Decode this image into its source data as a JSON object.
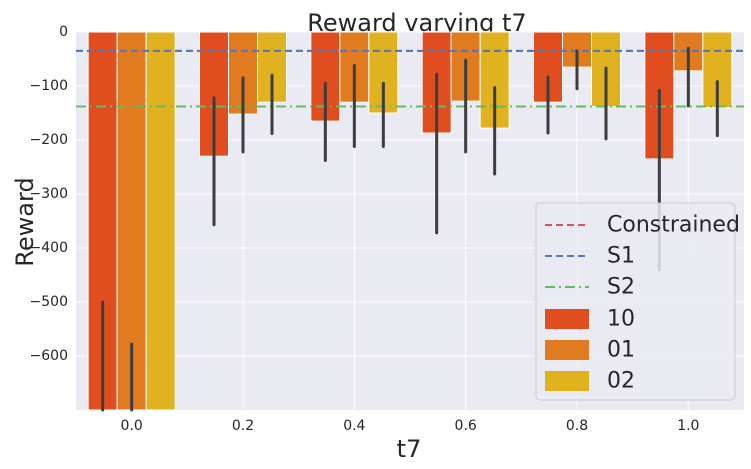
{
  "chart_data": {
    "type": "bar",
    "title": "Reward varying t7",
    "xlabel": "t7",
    "ylabel": "Reward",
    "categories": [
      "0.0",
      "0.2",
      "0.4",
      "0.6",
      "0.8",
      "1.0"
    ],
    "ylim": [
      -700,
      0
    ],
    "yticks": [
      0,
      -100,
      -200,
      -300,
      -400,
      -500,
      -600
    ],
    "ytick_labels": [
      "0",
      "−100",
      "−200",
      "−300",
      "−400",
      "−500",
      "−600"
    ],
    "grid": true,
    "legend_position": "lower-right",
    "series": [
      {
        "name": "10",
        "color": "#e04e1f",
        "values": [
          -700,
          -230,
          -165,
          -187,
          -130,
          -235
        ],
        "err_low": [
          -700,
          -357,
          -238,
          -372,
          -187,
          -440
        ],
        "err_high": [
          -500,
          -122,
          -95,
          -78,
          -83,
          -108
        ]
      },
      {
        "name": "01",
        "color": "#e07c1f",
        "values": [
          -700,
          -152,
          -130,
          -128,
          -65,
          -72
        ],
        "err_low": [
          -700,
          -222,
          -212,
          -222,
          -105,
          -137
        ],
        "err_high": [
          -578,
          -85,
          -62,
          -52,
          -35,
          -30
        ]
      },
      {
        "name": "02",
        "color": "#e0b21f",
        "values": [
          -700,
          -130,
          -150,
          -178,
          -138,
          -140
        ],
        "err_low": [
          -700,
          -188,
          -212,
          -263,
          -198,
          -192
        ],
        "err_high": [
          -700,
          -80,
          -95,
          -103,
          -67,
          -92
        ]
      }
    ],
    "reference_lines": [
      {
        "name": "Constrained",
        "value": -35,
        "color": "#d05858",
        "style": "dashed"
      },
      {
        "name": "S1",
        "value": -35,
        "color": "#5577bb",
        "style": "dashed"
      },
      {
        "name": "S2",
        "value": -138,
        "color": "#66bb66",
        "style": "dashdot"
      }
    ]
  }
}
